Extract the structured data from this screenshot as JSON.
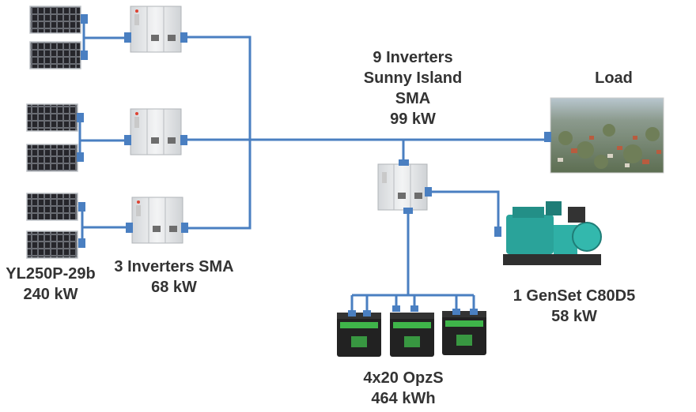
{
  "colors": {
    "wire": "#4a7fc1",
    "connector": "#4a7fc1",
    "panel_cell": "#1b1b1e",
    "panel_grid": "#9aa0a8",
    "inverter_body": "#e8eaec",
    "genset_body": "#2aa39a",
    "battery_body": "#222222",
    "battery_label": "#3fb54a"
  },
  "labels": {
    "pv_model": "YL250P-29b",
    "pv_power": "240 kW",
    "pv_inverters": "3 Inverters SMA",
    "pv_inverters_power": "68 kW",
    "island_line1": "9 Inverters",
    "island_line2": "Sunny Island",
    "island_line3": "SMA",
    "island_power": "99 kW",
    "load": "Load",
    "genset": "1 GenSet C80D5",
    "genset_power": "58 kW",
    "battery": "4x20 OpzS",
    "battery_capacity": "464 kWh"
  }
}
